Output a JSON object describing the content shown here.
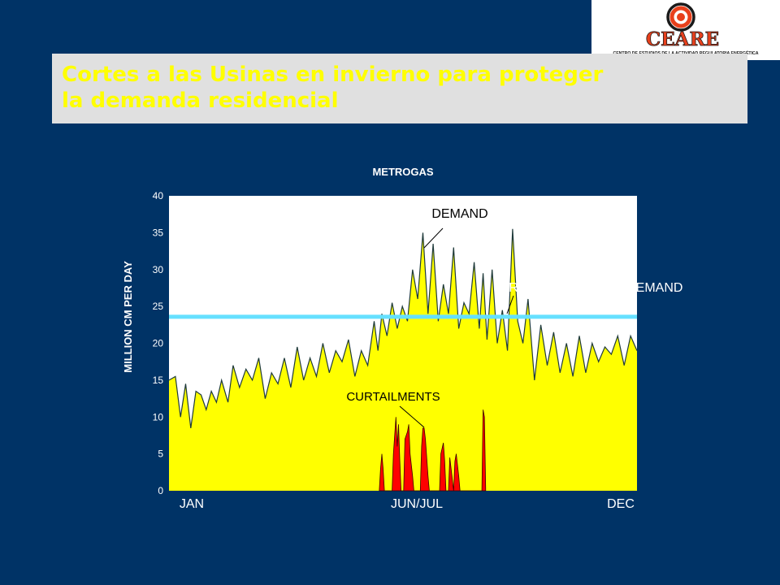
{
  "logo": {
    "name": "CEARE",
    "tagline": "CENTRO DE ESTUDIOS DE LA ACTIVIDAD REGULATORIA ENERGÉTICA",
    "colors": {
      "ring": "#e8401c",
      "text": "#e8401c",
      "stroke": "#1a1a1a"
    }
  },
  "slide": {
    "title_line1": "Cortes a las Usinas  en invierno para proteger",
    "title_line2": "la demanda residencial",
    "title_color": "#ffff00",
    "title_bg": "#e0e0e0",
    "background": "#003366"
  },
  "chart_data": {
    "type": "area",
    "title": "METROGAS",
    "ylabel": "MILLION CM PER DAY",
    "ylim": [
      0,
      40
    ],
    "yticks": [
      0,
      5,
      10,
      15,
      20,
      25,
      30,
      35,
      40
    ],
    "x_labels": [
      "JAN",
      "JUN/JUL",
      "DEC"
    ],
    "x_domain": [
      0,
      365
    ],
    "grid": false,
    "colors": {
      "demand": "#ffff00",
      "curtailments": "#ff0000",
      "firm": "#66e0ff",
      "plot_bg": "#ffffff"
    },
    "firm_contracted_demand": 23.6,
    "series": [
      {
        "name": "DEMAND",
        "x": [
          0,
          5,
          9,
          13,
          17,
          21,
          25,
          29,
          33,
          37,
          41,
          46,
          50,
          55,
          60,
          65,
          70,
          75,
          80,
          85,
          90,
          95,
          100,
          105,
          110,
          115,
          120,
          125,
          130,
          135,
          140,
          145,
          150,
          155,
          160,
          163,
          166,
          170,
          174,
          178,
          182,
          186,
          190,
          194,
          198,
          202,
          206,
          210,
          214,
          218,
          222,
          226,
          230,
          234,
          238,
          242,
          245,
          248,
          252,
          256,
          260,
          264,
          268,
          272,
          276,
          280,
          285,
          290,
          295,
          300,
          305,
          310,
          315,
          320,
          325,
          330,
          335,
          340,
          345,
          350,
          355,
          360,
          365
        ],
        "values": [
          15,
          15.5,
          10,
          14.5,
          8.5,
          13.5,
          13,
          11,
          13.5,
          12,
          15,
          12,
          17,
          14,
          16.5,
          15,
          18,
          12.5,
          16,
          14.5,
          18,
          14,
          19.5,
          15,
          18,
          15.5,
          20,
          16,
          19,
          17.5,
          20.5,
          15.5,
          19,
          17,
          23,
          19,
          24,
          21,
          25.5,
          22,
          25,
          23,
          30,
          26,
          35,
          24,
          33.5,
          23,
          28,
          24,
          33,
          22,
          25.5,
          24,
          31,
          22,
          29.5,
          20.5,
          30,
          20,
          24.5,
          19,
          35.5,
          23,
          20,
          26,
          15,
          22.5,
          17,
          21.5,
          16,
          20,
          15.5,
          21,
          16,
          20,
          17.5,
          19.5,
          18.5,
          21,
          17,
          21,
          19
        ]
      },
      {
        "name": "CURTAILMENTS",
        "x": [
          164,
          165,
          166,
          167,
          168,
          174,
          175,
          177,
          178,
          179,
          180,
          181,
          183,
          184,
          186,
          187,
          188,
          190,
          191,
          196,
          197,
          198,
          199,
          200,
          202,
          203,
          211,
          212,
          214,
          215,
          216,
          218,
          219,
          220,
          222,
          223,
          224,
          226,
          227,
          244,
          245,
          246,
          247
        ],
        "values": [
          0,
          3,
          5,
          3,
          0,
          0,
          5,
          10,
          6,
          9,
          4,
          0,
          0,
          7,
          8,
          9,
          5,
          2,
          0,
          0,
          6,
          8.5,
          8.5,
          7,
          2,
          0,
          0,
          5,
          6.5,
          4,
          0,
          0,
          4.5,
          3,
          0,
          4,
          5,
          2,
          0,
          0,
          11,
          10,
          0
        ]
      }
    ],
    "annotations": {
      "demand_label": "DEMAND",
      "firm_label": "FIRM CONTRACTED DEMAND",
      "curtailments_label": "CURTAILMENTS"
    }
  }
}
